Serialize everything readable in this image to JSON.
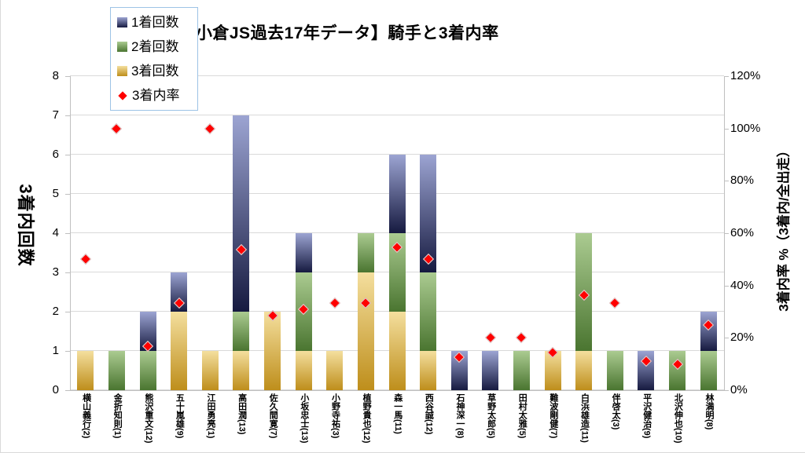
{
  "title": "【小倉JS過去17年データ】騎手と3着内率",
  "chart_data": {
    "type": "bar",
    "subtype": "stacked-bars-with-scatter-overlay",
    "title": "【小倉JS過去17年データ】騎手と3着内率",
    "categories": [
      "横山義行(2)",
      "金折知則(1)",
      "熊沢重文(12)",
      "五十嵐雄(9)",
      "江田勇亮(1)",
      "高田潤(13)",
      "佐久間寛(7)",
      "小坂忠士(13)",
      "小野寺祐(3)",
      "植野貴也(12)",
      "森一馬(11)",
      "西谷誠(12)",
      "石神深一(8)",
      "草野太郎(5)",
      "田村太雅(5)",
      "難波剛健(7)",
      "白浜雄造(11)",
      "伴啓太(3)",
      "平沢健治(9)",
      "北沢伸也(10)",
      "林満明(8)"
    ],
    "series": [
      {
        "name": "1着回数",
        "role": "bar",
        "color_top": "#9CA4D2",
        "color_bottom": "#161A40",
        "values": [
          0,
          0,
          1,
          1,
          0,
          5,
          0,
          1,
          0,
          0,
          2,
          3,
          1,
          1,
          0,
          0,
          0,
          0,
          1,
          0,
          1
        ]
      },
      {
        "name": "2着回数",
        "role": "bar",
        "color_top": "#ABCB91",
        "color_bottom": "#4A7530",
        "values": [
          0,
          1,
          1,
          0,
          0,
          1,
          0,
          2,
          0,
          1,
          2,
          2,
          0,
          0,
          1,
          0,
          3,
          1,
          0,
          1,
          1
        ]
      },
      {
        "name": "3着回数",
        "role": "bar",
        "color_top": "#F4DF9E",
        "color_bottom": "#BE8E1B",
        "values": [
          1,
          0,
          0,
          2,
          1,
          1,
          2,
          1,
          1,
          3,
          2,
          1,
          0,
          0,
          0,
          1,
          1,
          0,
          0,
          0,
          0
        ]
      },
      {
        "name": "3着内率",
        "role": "scatter",
        "marker": "diamond",
        "color": "#FF0000",
        "values_pct": [
          50.0,
          100.0,
          16.7,
          33.3,
          100.0,
          53.8,
          28.6,
          30.8,
          33.3,
          33.3,
          54.5,
          50.0,
          12.5,
          20.0,
          20.0,
          14.3,
          36.4,
          33.3,
          11.1,
          10.0,
          25.0
        ]
      }
    ],
    "y_left": {
      "title": "3着内回数",
      "min": 0,
      "max": 8,
      "step": 1
    },
    "y_right": {
      "title": "3着内率 %（3着内/全出走）",
      "min": 0,
      "max": 120,
      "step": 20,
      "suffix": "%"
    },
    "grid": true,
    "legend_position": "top-left",
    "colors": {
      "gridline": "#D9D9D9",
      "axis_line": "#BFBFBF",
      "legend_border": "#9DC3E6",
      "diamond_outline": "#DADADA",
      "text": "#000000"
    }
  }
}
